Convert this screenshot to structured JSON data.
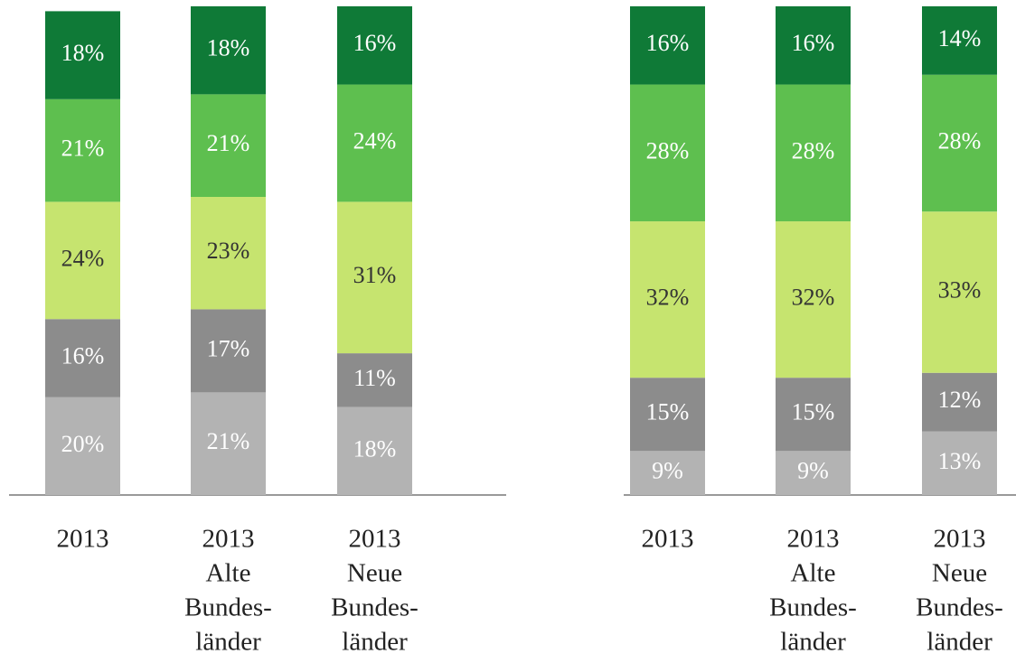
{
  "chart_data": {
    "type": "stacked_bar",
    "categories": [
      [
        "2013"
      ],
      [
        "2013",
        "Alte",
        "Bundes-",
        "länder"
      ],
      [
        "2013",
        "Neue",
        "Bundes-",
        "länder"
      ],
      [
        "2013"
      ],
      [
        "2013",
        "Alte",
        "Bundes-",
        "länder"
      ],
      [
        "2013",
        "Neue",
        "Bundes-",
        "länder"
      ]
    ],
    "ylim": [
      0,
      100
    ],
    "series": [
      {
        "color": "#b3b3b3",
        "text_color": "#ffffff",
        "values": [
          20,
          21,
          18,
          9,
          9,
          13
        ],
        "value_labels": [
          "20%",
          "21%",
          "18%",
          "9%",
          "9%",
          "13%"
        ]
      },
      {
        "color": "#8c8c8c",
        "text_color": "#ffffff",
        "values": [
          16,
          17,
          11,
          15,
          15,
          12
        ],
        "value_labels": [
          "16%",
          "17%",
          "11%",
          "15%",
          "15%",
          "12%"
        ]
      },
      {
        "color": "#c6e46f",
        "text_color": "#333333",
        "values": [
          24,
          23,
          31,
          32,
          32,
          33
        ],
        "value_labels": [
          "24%",
          "23%",
          "31%",
          "32%",
          "32%",
          "33%"
        ]
      },
      {
        "color": "#5ebf4f",
        "text_color": "#ffffff",
        "values": [
          21,
          21,
          24,
          28,
          28,
          28
        ],
        "value_labels": [
          "21%",
          "21%",
          "24%",
          "28%",
          "28%",
          "28%"
        ]
      },
      {
        "color": "#0f7a37",
        "text_color": "#ffffff",
        "values": [
          18,
          18,
          16,
          16,
          16,
          14
        ],
        "value_labels": [
          "18%",
          "18%",
          "16%",
          "16%",
          "16%",
          "14%"
        ]
      }
    ]
  }
}
